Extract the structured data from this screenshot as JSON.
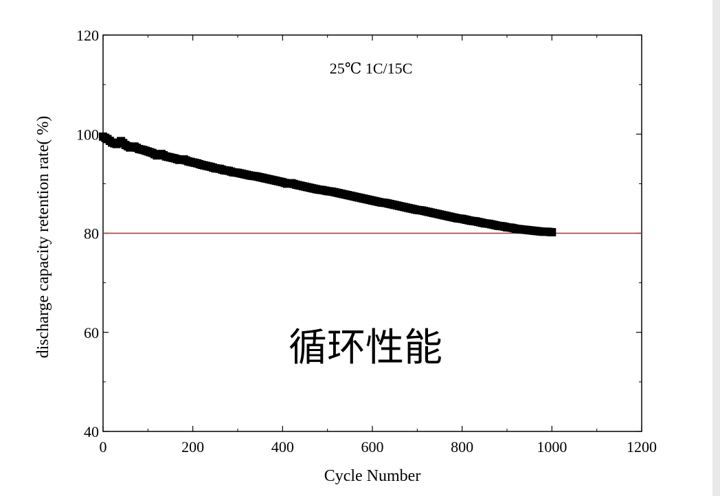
{
  "chart_data": {
    "type": "scatter",
    "title": "",
    "annotation": "25℃   1C/15C",
    "overlay_text": "循环性能",
    "xlabel": "Cycle Number",
    "ylabel": "discharge capacity retention rate( %)",
    "xlim": [
      0,
      1200
    ],
    "ylim": [
      40,
      120
    ],
    "xticks": [
      0,
      200,
      400,
      600,
      800,
      1000,
      1200
    ],
    "yticks": [
      40,
      60,
      80,
      100,
      120
    ],
    "grid": false,
    "legend": "none",
    "reference_line": {
      "y": 80,
      "color": "#cc2222"
    },
    "marker_color": "#000000",
    "series": [
      {
        "x": [
          0,
          10,
          20,
          30,
          40,
          50,
          60,
          70,
          80,
          90,
          100,
          110,
          120,
          130,
          140,
          150,
          160,
          170,
          180,
          190,
          200,
          210,
          220,
          230,
          240,
          250,
          260,
          270,
          280,
          290,
          300,
          310,
          320,
          330,
          340,
          350,
          360,
          370,
          380,
          390,
          400,
          410,
          420,
          430,
          440,
          450,
          460,
          470,
          480,
          490,
          500,
          510,
          520,
          530,
          540,
          550,
          560,
          570,
          580,
          590,
          600,
          610,
          620,
          630,
          640,
          650,
          660,
          670,
          680,
          690,
          700,
          710,
          720,
          730,
          740,
          750,
          760,
          770,
          780,
          790,
          800,
          810,
          820,
          830,
          840,
          850,
          860,
          870,
          880,
          890,
          900,
          910,
          920,
          930,
          940,
          950,
          960,
          970,
          980,
          990,
          1000
        ],
        "y": [
          99.5,
          99.0,
          98.3,
          98.0,
          98.6,
          97.8,
          97.3,
          97.5,
          97.0,
          96.8,
          96.5,
          96.2,
          95.7,
          96.0,
          95.5,
          95.3,
          95.1,
          94.8,
          94.9,
          94.5,
          94.3,
          94.1,
          93.8,
          93.6,
          93.4,
          93.1,
          93.0,
          92.7,
          92.6,
          92.3,
          92.2,
          92.0,
          91.8,
          91.6,
          91.5,
          91.3,
          91.1,
          90.9,
          90.7,
          90.5,
          90.3,
          90.0,
          90.1,
          89.8,
          89.6,
          89.4,
          89.2,
          89.0,
          88.8,
          88.7,
          88.5,
          88.4,
          88.2,
          88.0,
          87.8,
          87.6,
          87.4,
          87.2,
          87.0,
          86.8,
          86.6,
          86.4,
          86.2,
          86.1,
          85.9,
          85.7,
          85.5,
          85.3,
          85.1,
          84.9,
          84.7,
          84.6,
          84.4,
          84.2,
          84.0,
          83.8,
          83.6,
          83.4,
          83.2,
          83.0,
          82.9,
          82.7,
          82.5,
          82.4,
          82.2,
          82.0,
          81.9,
          81.7,
          81.5,
          81.4,
          81.2,
          81.1,
          80.9,
          80.8,
          80.7,
          80.6,
          80.5,
          80.4,
          80.3,
          80.3,
          80.2
        ]
      }
    ]
  }
}
